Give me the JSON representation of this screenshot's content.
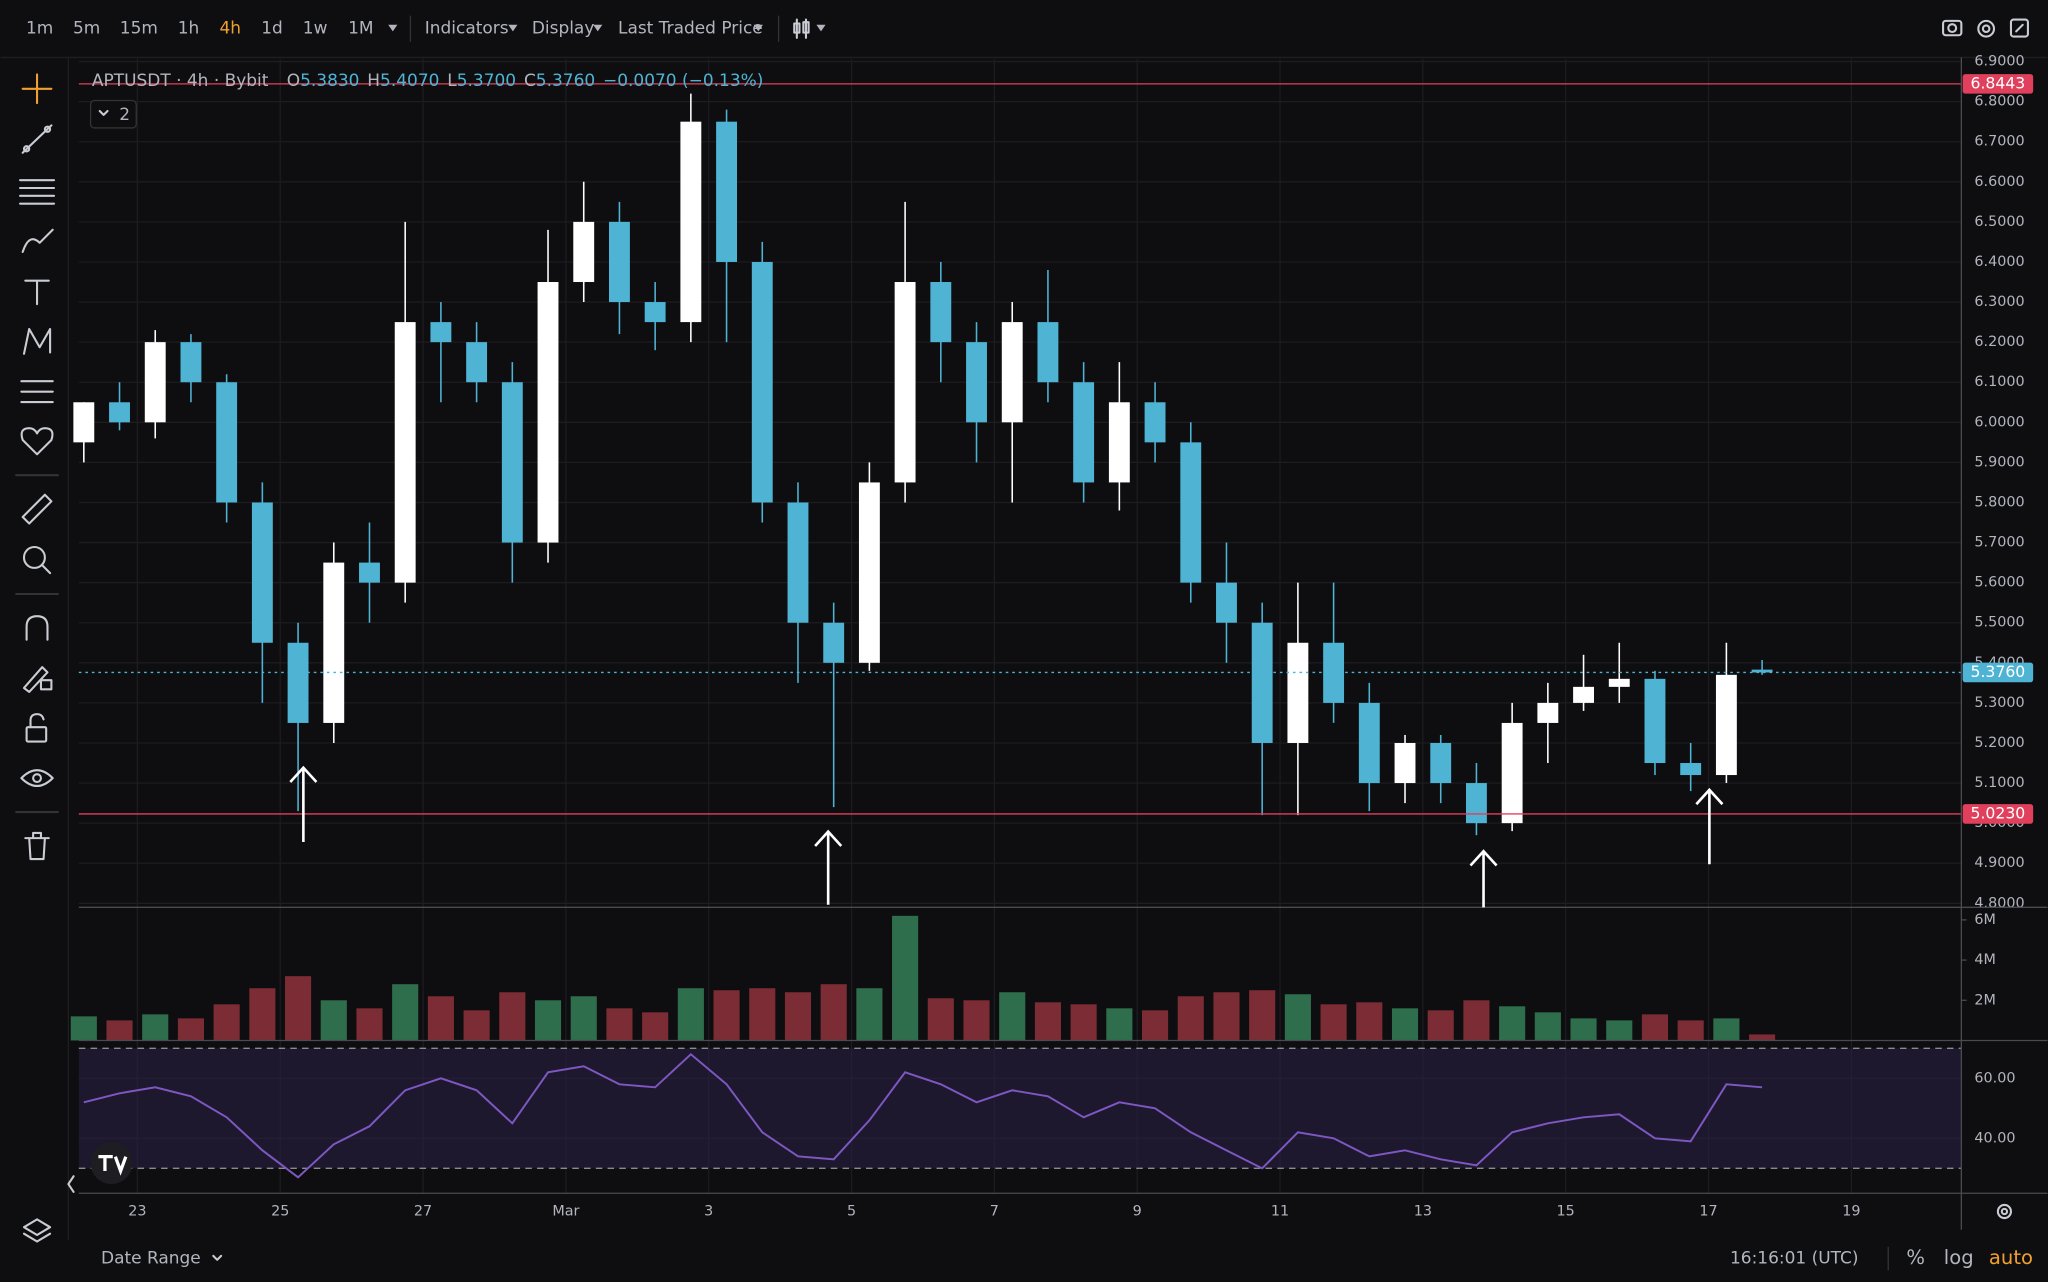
{
  "toolbar": {
    "intervals": [
      "1m",
      "5m",
      "15m",
      "1h",
      "4h",
      "1d",
      "1w",
      "1M"
    ],
    "active_interval": "4h",
    "menus": [
      "Indicators",
      "Display",
      "Last Traded Price"
    ]
  },
  "legend": {
    "symbol": "APTUSDT · 4h · Bybit",
    "ohlc": [
      {
        "label": "O",
        "value": "5.3830"
      },
      {
        "label": "H",
        "value": "5.4070"
      },
      {
        "label": "L",
        "value": "5.3700"
      },
      {
        "label": "C",
        "value": "5.3760"
      }
    ],
    "change": "−0.0070 (−0.13%)",
    "badge": "2"
  },
  "footer": {
    "date_range": "Date Range",
    "time": "16:16:01 (UTC)",
    "scale_options": [
      "%",
      "log",
      "auto"
    ],
    "active_option": "auto"
  },
  "chart_data": [
    {
      "type": "candlestick",
      "up_color": "#ffffff",
      "down_color": "#4fb3d4",
      "grid": true,
      "x": [
        22.25,
        22.75,
        23.25,
        23.75,
        24.25,
        24.75,
        25.25,
        25.75,
        26.25,
        26.75,
        27.25,
        27.75,
        28.25,
        28.75,
        29.25,
        29.75,
        30.25,
        30.75,
        31.25,
        31.75,
        32.25,
        32.75,
        33.25,
        33.75,
        34.25,
        34.75,
        35.25,
        35.75,
        36.25,
        36.75,
        37.25,
        37.75,
        38.25,
        38.75,
        39.25,
        39.75,
        40.25,
        40.75,
        41.25,
        41.75,
        42.25,
        42.75,
        43.25,
        43.75,
        44.25,
        44.75,
        45.25,
        45.75
      ],
      "open": [
        5.95,
        6.05,
        6.0,
        6.2,
        6.1,
        5.8,
        5.45,
        5.25,
        5.65,
        5.6,
        6.25,
        6.2,
        6.1,
        5.7,
        6.35,
        6.5,
        6.3,
        6.25,
        6.75,
        6.4,
        5.8,
        5.5,
        5.4,
        5.85,
        6.35,
        6.2,
        6.0,
        6.25,
        6.1,
        5.85,
        6.05,
        5.95,
        5.6,
        5.5,
        5.2,
        5.45,
        5.3,
        5.1,
        5.2,
        5.1,
        5.0,
        5.25,
        5.3,
        5.34,
        5.36,
        5.15,
        5.12,
        5.383
      ],
      "high": [
        6.05,
        6.1,
        6.23,
        6.22,
        6.12,
        5.85,
        5.5,
        5.7,
        5.75,
        6.5,
        6.3,
        6.25,
        6.15,
        6.48,
        6.6,
        6.55,
        6.35,
        6.82,
        6.78,
        6.45,
        5.85,
        5.55,
        5.9,
        6.55,
        6.4,
        6.25,
        6.3,
        6.38,
        6.15,
        6.15,
        6.1,
        6.0,
        5.7,
        5.55,
        5.6,
        5.6,
        5.35,
        5.22,
        5.22,
        5.15,
        5.3,
        5.35,
        5.42,
        5.45,
        5.38,
        5.2,
        5.45,
        5.407
      ],
      "low": [
        5.9,
        5.98,
        5.96,
        6.05,
        5.75,
        5.3,
        5.03,
        5.2,
        5.5,
        5.55,
        6.05,
        6.05,
        5.6,
        5.65,
        6.3,
        6.22,
        6.18,
        6.2,
        6.2,
        5.75,
        5.35,
        5.04,
        5.38,
        5.8,
        6.1,
        5.9,
        5.8,
        6.05,
        5.8,
        5.78,
        5.9,
        5.55,
        5.4,
        5.02,
        5.02,
        5.25,
        5.03,
        5.05,
        5.05,
        4.97,
        4.98,
        5.15,
        5.28,
        5.3,
        5.12,
        5.08,
        5.1,
        5.37
      ],
      "close": [
        6.05,
        6.0,
        6.2,
        6.1,
        5.8,
        5.45,
        5.25,
        5.65,
        5.6,
        6.25,
        6.2,
        6.1,
        5.7,
        6.35,
        6.5,
        6.3,
        6.25,
        6.75,
        6.4,
        5.8,
        5.5,
        5.4,
        5.85,
        6.35,
        6.2,
        6.0,
        6.25,
        6.1,
        5.85,
        6.05,
        5.95,
        5.6,
        5.5,
        5.2,
        5.45,
        5.3,
        5.1,
        5.2,
        5.1,
        5.0,
        5.25,
        5.3,
        5.34,
        5.36,
        5.15,
        5.12,
        5.37,
        5.376
      ],
      "xlim": [
        22.18,
        48.54
      ],
      "ylim": [
        4.79,
        6.907
      ],
      "xticks": [
        23,
        25,
        27,
        {
          "value": 29,
          "label": "Mar"
        },
        {
          "value": 31,
          "label": "3"
        },
        {
          "value": 33,
          "label": "5"
        },
        {
          "value": 35,
          "label": "7"
        },
        {
          "value": 37,
          "label": "9"
        },
        {
          "value": 39,
          "label": "11"
        },
        {
          "value": 41,
          "label": "13"
        },
        {
          "value": 43,
          "label": "15"
        },
        {
          "value": 45,
          "label": "17"
        },
        {
          "value": 47,
          "label": "19"
        }
      ],
      "yticks": [
        {
          "value": 4.8,
          "label": "4.8000"
        },
        {
          "value": 4.9,
          "label": "4.9000"
        },
        {
          "value": 5.0,
          "label": "5.0000"
        },
        {
          "value": 5.1,
          "label": "5.1000"
        },
        {
          "value": 5.2,
          "label": "5.2000"
        },
        {
          "value": 5.3,
          "label": "5.3000"
        },
        {
          "value": 5.4,
          "label": "5.4000"
        },
        {
          "value": 5.5,
          "label": "5.5000"
        },
        {
          "value": 5.6,
          "label": "5.6000"
        },
        {
          "value": 5.7,
          "label": "5.7000"
        },
        {
          "value": 5.8,
          "label": "5.8000"
        },
        {
          "value": 5.9,
          "label": "5.9000"
        },
        {
          "value": 6.0,
          "label": "6.0000"
        },
        {
          "value": 6.1,
          "label": "6.1000"
        },
        {
          "value": 6.2,
          "label": "6.2000"
        },
        {
          "value": 6.3,
          "label": "6.3000"
        },
        {
          "value": 6.4,
          "label": "6.4000"
        },
        {
          "value": 6.5,
          "label": "6.5000"
        },
        {
          "value": 6.6,
          "label": "6.6000"
        },
        {
          "value": 6.7,
          "label": "6.7000"
        },
        {
          "value": 6.8,
          "label": "6.8000"
        },
        {
          "value": 6.9,
          "label": "6.9000"
        }
      ],
      "hlines": [
        {
          "value": 6.8443,
          "label": "6.8443",
          "color": "#e0405c",
          "style": "solid"
        },
        {
          "value": 5.023,
          "label": "5.0230",
          "color": "#e0405c",
          "style": "solid"
        },
        {
          "value": 5.376,
          "label": "5.3760",
          "color": "#4fb3d4",
          "style": "dotted"
        }
      ]
    },
    {
      "type": "bar",
      "name": "Volume",
      "up_color": "#2f6e4d",
      "down_color": "#7b2c34",
      "grid": false,
      "x": [
        22.25,
        22.75,
        23.25,
        23.75,
        24.25,
        24.75,
        25.25,
        25.75,
        26.25,
        26.75,
        27.25,
        27.75,
        28.25,
        28.75,
        29.25,
        29.75,
        30.25,
        30.75,
        31.25,
        31.75,
        32.25,
        32.75,
        33.25,
        33.75,
        34.25,
        34.75,
        35.25,
        35.75,
        36.25,
        36.75,
        37.25,
        37.75,
        38.25,
        38.75,
        39.25,
        39.75,
        40.25,
        40.75,
        41.25,
        41.75,
        42.25,
        42.75,
        43.25,
        43.75,
        44.25,
        44.75,
        45.25,
        45.75
      ],
      "values": [
        1200000,
        1000000,
        1300000,
        1100000,
        1800000,
        2600000,
        3200000,
        2000000,
        1600000,
        2800000,
        2200000,
        1500000,
        2400000,
        2000000,
        2200000,
        1600000,
        1400000,
        2600000,
        2500000,
        2600000,
        2400000,
        2800000,
        2600000,
        6200000,
        2100000,
        2000000,
        2400000,
        1900000,
        1800000,
        1600000,
        1500000,
        2200000,
        2400000,
        2500000,
        2300000,
        1800000,
        1900000,
        1600000,
        1500000,
        2000000,
        1700000,
        1400000,
        1100000,
        1000000,
        1300000,
        1000000,
        1100000,
        300000
      ],
      "xlim": [
        22.18,
        48.54
      ],
      "ylim": [
        0,
        6300000
      ],
      "yticks": [
        {
          "value": 2000000,
          "label": "2M"
        },
        {
          "value": 4000000,
          "label": "4M"
        },
        {
          "value": 6000000,
          "label": "6M"
        }
      ]
    },
    {
      "type": "line",
      "name": "RSI",
      "color": "#7e57c2",
      "band_color": "#2a2145",
      "bands": [
        30,
        70
      ],
      "grid": true,
      "x": [
        22.25,
        22.75,
        23.25,
        23.75,
        24.25,
        24.75,
        25.25,
        25.75,
        26.25,
        26.75,
        27.25,
        27.75,
        28.25,
        28.75,
        29.25,
        29.75,
        30.25,
        30.75,
        31.25,
        31.75,
        32.25,
        32.75,
        33.25,
        33.75,
        34.25,
        34.75,
        35.25,
        35.75,
        36.25,
        36.75,
        37.25,
        37.75,
        38.25,
        38.75,
        39.25,
        39.75,
        40.25,
        40.75,
        41.25,
        41.75,
        42.25,
        42.75,
        43.25,
        43.75,
        44.25,
        44.75,
        45.25,
        45.75
      ],
      "values": [
        52,
        55,
        57,
        54,
        47,
        36,
        27,
        38,
        44,
        56,
        60,
        56,
        45,
        62,
        64,
        58,
        57,
        68,
        58,
        42,
        34,
        33,
        46,
        62,
        58,
        52,
        56,
        54,
        47,
        52,
        50,
        42,
        36,
        30,
        42,
        40,
        34,
        36,
        33,
        31,
        42,
        45,
        47,
        48,
        40,
        39,
        58,
        57
      ],
      "xlim": [
        22.18,
        48.54
      ],
      "ylim": [
        21.7,
        72.6
      ],
      "yticks": [
        {
          "value": 40,
          "label": "40.00"
        },
        {
          "value": 60,
          "label": "60.00"
        }
      ]
    }
  ]
}
